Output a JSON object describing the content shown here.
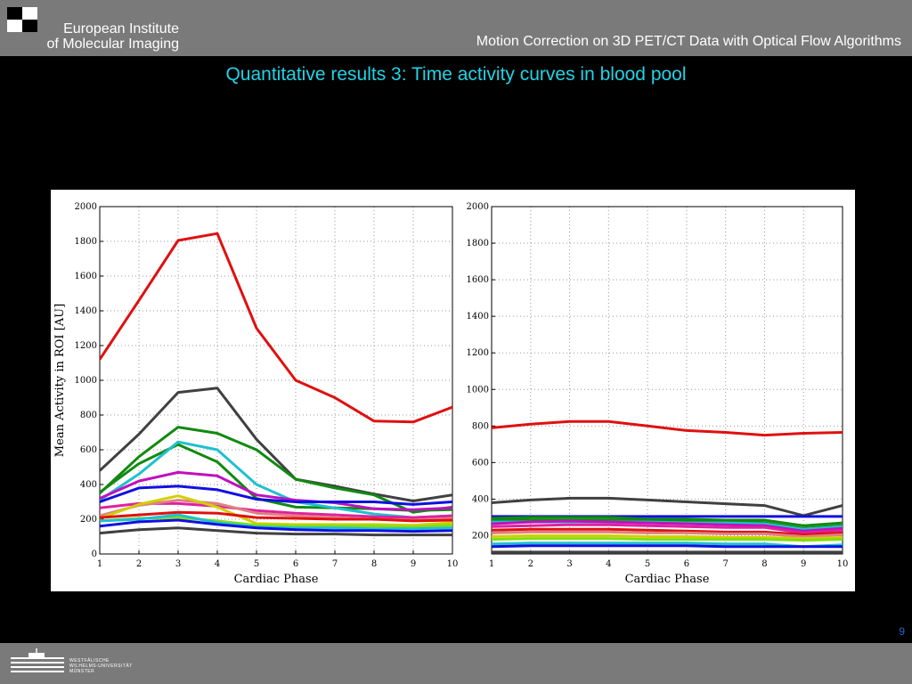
{
  "header": {
    "org_line1": "European Institute",
    "org_line2": "of Molecular Imaging",
    "deck_title": "Motion Correction on 3D PET/CT Data with Optical Flow Algorithms"
  },
  "slide": {
    "title": "Quantitative results 3: Time activity curves in blood pool",
    "page_number": "9"
  },
  "footer": {
    "university_line1": "WESTFÄLISCHE",
    "university_line2": "WILHELMS-UNIVERSITÄT",
    "university_line3": "MÜNSTER"
  },
  "chart_data": [
    {
      "type": "line",
      "xlabel": "Cardiac Phase",
      "ylabel": "Mean Activity in ROI [AU]",
      "x": [
        1,
        2,
        3,
        4,
        5,
        6,
        7,
        8,
        9,
        10
      ],
      "xlim": [
        1,
        10
      ],
      "ylim": [
        0,
        2000
      ],
      "yticks": [
        0,
        200,
        400,
        600,
        800,
        1000,
        1200,
        1400,
        1600,
        1800,
        2000
      ],
      "grid": true,
      "series": [
        {
          "color": "#e01010",
          "values": [
            1120,
            1460,
            1805,
            1845,
            1300,
            1000,
            900,
            765,
            760,
            845
          ]
        },
        {
          "color": "#404040",
          "values": [
            480,
            690,
            930,
            955,
            660,
            430,
            390,
            345,
            305,
            340
          ]
        },
        {
          "color": "#108a10",
          "values": [
            350,
            560,
            730,
            695,
            600,
            430,
            380,
            340,
            240,
            270
          ]
        },
        {
          "color": "#108a10",
          "values": [
            355,
            520,
            630,
            530,
            320,
            270,
            265,
            260,
            250,
            255
          ]
        },
        {
          "color": "#20c0d0",
          "values": [
            310,
            460,
            645,
            600,
            400,
            300,
            265,
            230,
            210,
            220
          ]
        },
        {
          "color": "#c010c0",
          "values": [
            320,
            420,
            470,
            450,
            340,
            310,
            295,
            260,
            255,
            265
          ]
        },
        {
          "color": "#1010e0",
          "values": [
            300,
            380,
            390,
            370,
            315,
            300,
            300,
            300,
            285,
            300
          ]
        },
        {
          "color": "#e020a0",
          "values": [
            265,
            290,
            290,
            275,
            250,
            235,
            225,
            215,
            210,
            220
          ]
        },
        {
          "color": "#e08080",
          "values": [
            220,
            280,
            310,
            290,
            235,
            220,
            210,
            200,
            195,
            205
          ]
        },
        {
          "color": "#d0d000",
          "values": [
            205,
            285,
            335,
            270,
            175,
            170,
            170,
            170,
            165,
            180
          ]
        },
        {
          "color": "#e01010",
          "values": [
            210,
            225,
            240,
            235,
            210,
            205,
            200,
            200,
            190,
            195
          ]
        },
        {
          "color": "#80e010",
          "values": [
            190,
            205,
            210,
            190,
            165,
            160,
            160,
            160,
            155,
            165
          ]
        },
        {
          "color": "#20c0d0",
          "values": [
            190,
            200,
            225,
            180,
            155,
            150,
            150,
            145,
            145,
            150
          ]
        },
        {
          "color": "#1010e0",
          "values": [
            160,
            185,
            195,
            170,
            150,
            140,
            135,
            135,
            130,
            135
          ]
        },
        {
          "color": "#404040",
          "values": [
            120,
            140,
            150,
            135,
            120,
            115,
            115,
            110,
            110,
            110
          ]
        }
      ]
    },
    {
      "type": "line",
      "xlabel": "Cardiac Phase",
      "ylabel": "",
      "x": [
        1,
        2,
        3,
        4,
        5,
        6,
        7,
        8,
        9,
        10
      ],
      "xlim": [
        1,
        10
      ],
      "ylim": [
        100,
        2000
      ],
      "yticks": [
        200,
        400,
        600,
        800,
        1000,
        1200,
        1400,
        1600,
        1800,
        2000
      ],
      "grid": true,
      "series": [
        {
          "color": "#e01010",
          "values": [
            790,
            810,
            825,
            825,
            800,
            775,
            765,
            750,
            760,
            765
          ]
        },
        {
          "color": "#404040",
          "values": [
            380,
            395,
            405,
            405,
            395,
            385,
            375,
            365,
            310,
            365
          ]
        },
        {
          "color": "#1010e0",
          "values": [
            305,
            305,
            305,
            305,
            305,
            305,
            305,
            305,
            305,
            305
          ]
        },
        {
          "color": "#108a10",
          "values": [
            295,
            300,
            300,
            300,
            290,
            290,
            285,
            285,
            255,
            270
          ]
        },
        {
          "color": "#108a10",
          "values": [
            285,
            285,
            285,
            285,
            280,
            280,
            275,
            270,
            240,
            255
          ]
        },
        {
          "color": "#20c0d0",
          "values": [
            275,
            275,
            275,
            275,
            275,
            270,
            270,
            265,
            235,
            250
          ]
        },
        {
          "color": "#c010c0",
          "values": [
            265,
            275,
            280,
            275,
            270,
            265,
            260,
            255,
            225,
            240
          ]
        },
        {
          "color": "#e020a0",
          "values": [
            250,
            255,
            260,
            260,
            255,
            250,
            245,
            245,
            215,
            230
          ]
        },
        {
          "color": "#e01010",
          "values": [
            230,
            235,
            235,
            235,
            230,
            225,
            220,
            220,
            205,
            215
          ]
        },
        {
          "color": "#e08080",
          "values": [
            215,
            220,
            220,
            220,
            215,
            215,
            210,
            210,
            195,
            205
          ]
        },
        {
          "color": "#d0d000",
          "values": [
            195,
            200,
            200,
            200,
            195,
            195,
            190,
            190,
            185,
            190
          ]
        },
        {
          "color": "#80e010",
          "values": [
            180,
            185,
            185,
            185,
            180,
            180,
            180,
            180,
            175,
            180
          ]
        },
        {
          "color": "#20c0d0",
          "values": [
            155,
            160,
            160,
            160,
            160,
            160,
            155,
            155,
            140,
            150
          ]
        },
        {
          "color": "#1010e0",
          "values": [
            140,
            145,
            145,
            145,
            145,
            145,
            140,
            140,
            140,
            140
          ]
        },
        {
          "color": "#404040",
          "values": [
            110,
            110,
            110,
            110,
            110,
            110,
            110,
            110,
            110,
            110
          ]
        }
      ]
    }
  ]
}
